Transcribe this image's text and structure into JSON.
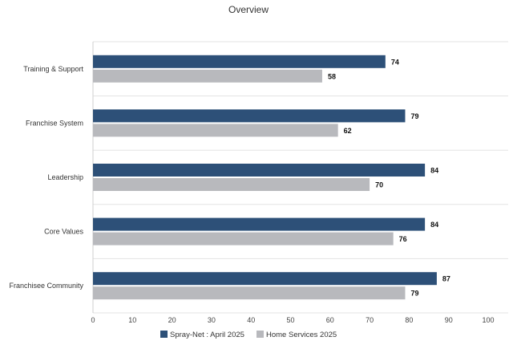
{
  "chart_data": {
    "type": "bar",
    "orientation": "horizontal",
    "title": "Overview",
    "categories": [
      "Training & Support",
      "Franchise System",
      "Leadership",
      "Core Values",
      "Franchisee Community"
    ],
    "series": [
      {
        "name": "Spray-Net : April 2025",
        "color": "#2d5078",
        "values": [
          74,
          79,
          84,
          84,
          87
        ]
      },
      {
        "name": "Home Services 2025",
        "color": "#b8b9bd",
        "values": [
          58,
          62,
          70,
          76,
          79
        ]
      }
    ],
    "xlim": [
      0,
      100
    ],
    "xticks": [
      0,
      10,
      20,
      30,
      40,
      50,
      60,
      70,
      80,
      90,
      100
    ],
    "grid": "horizontal category separators",
    "legend": "bottom-center"
  }
}
